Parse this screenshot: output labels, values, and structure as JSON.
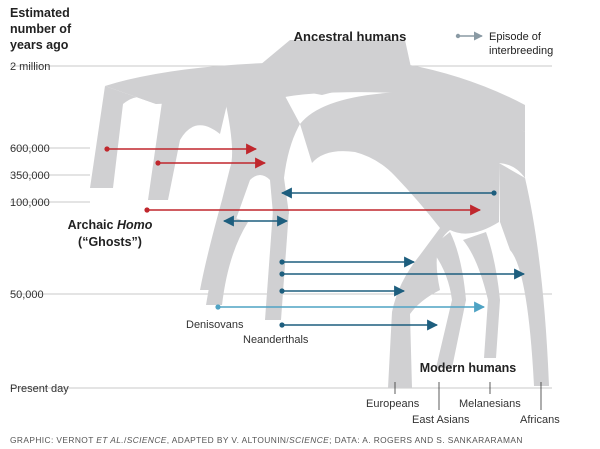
{
  "y_axis": {
    "title_lines": [
      "Estimated",
      "number of",
      "years ago"
    ],
    "ticks": [
      "2 million",
      "600,000",
      "350,000",
      "100,000",
      "50,000",
      "Present day"
    ]
  },
  "title": "Ancestral humans",
  "legend": {
    "line1": "Episode of",
    "line2": "interbreeding"
  },
  "archaic": {
    "line1_pre": "Archaic ",
    "line1_em": "Homo",
    "line2": "(“Ghosts”)"
  },
  "modern_humans": "Modern humans",
  "branches": {
    "denisovans": "Denisovans",
    "neanderthals": "Neanderthals",
    "europeans": "Europeans",
    "east_asians": "East Asians",
    "melanesians": "Melanesians",
    "africans": "Africans"
  },
  "credit": {
    "pre": "GRAPHIC: VERNOT ",
    "em1": "ET AL.",
    "mid1": "/",
    "em2": "SCIENCE",
    "mid2": ", ADAPTED BY V. ALTOUNIN/",
    "em3": "SCIENCE",
    "post": "; DATA: A. ROGERS AND S. SANKARARAMAN"
  },
  "colors": {
    "tree": "#d0d0d2",
    "red": "#c0272d",
    "teal": "#1d5e7e",
    "light_teal": "#4fa3c4",
    "gridline": "#b8b8b8"
  }
}
